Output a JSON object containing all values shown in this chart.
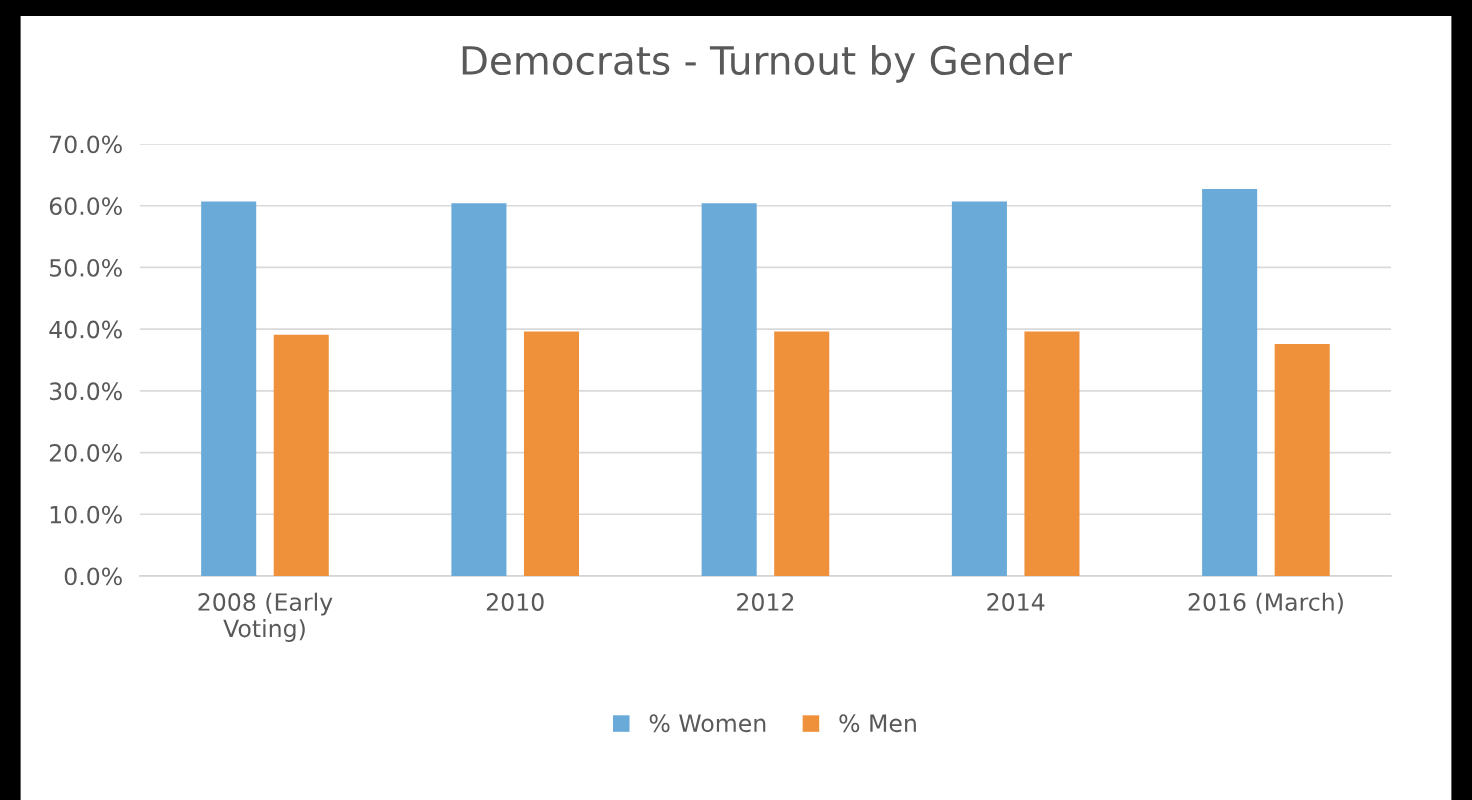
{
  "chart_data": {
    "type": "bar",
    "title": "Democrats - Turnout by Gender",
    "categories": [
      "2008 (Early\nVoting)",
      "2010",
      "2012",
      "2014",
      "2016 (March)"
    ],
    "series": [
      {
        "name": "% Women",
        "color": "#6aaad9",
        "values": [
          60.7,
          60.4,
          60.4,
          60.7,
          62.7
        ]
      },
      {
        "name": "% Men",
        "color": "#ef913b",
        "values": [
          39.1,
          39.6,
          39.6,
          39.6,
          37.6
        ]
      }
    ],
    "ylim": [
      0,
      70
    ],
    "yticks": [
      {
        "value": 0,
        "label": "0.0%"
      },
      {
        "value": 10,
        "label": "10.0%"
      },
      {
        "value": 20,
        "label": "20.0%"
      },
      {
        "value": 30,
        "label": "30.0%"
      },
      {
        "value": 40,
        "label": "40.0%"
      },
      {
        "value": 50,
        "label": "50.0%"
      },
      {
        "value": 60,
        "label": "60.0%"
      },
      {
        "value": 70,
        "label": "70.0%"
      }
    ],
    "grid": "y",
    "legend": "bottom"
  }
}
